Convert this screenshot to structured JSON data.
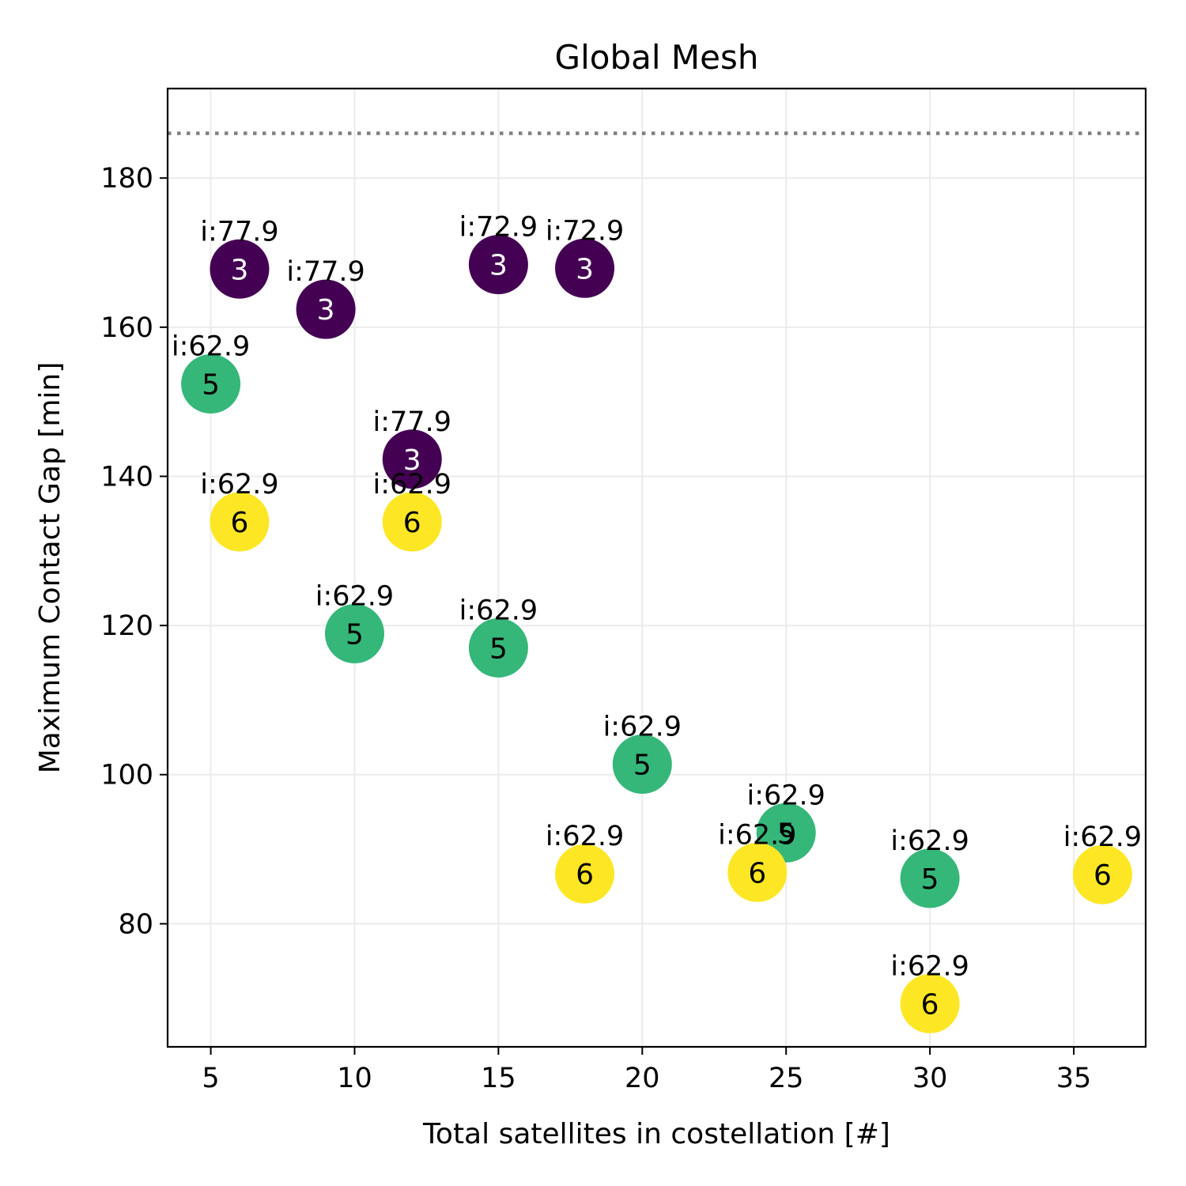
{
  "chart_data": {
    "type": "scatter",
    "title": "Global Mesh",
    "xlabel": "Total satellites in costellation [#]",
    "ylabel": "Maximum Contact Gap [min]",
    "xlim": [
      3.5,
      37.5
    ],
    "ylim": [
      63.5,
      192
    ],
    "xticks": [
      5,
      10,
      15,
      20,
      25,
      30,
      35
    ],
    "yticks": [
      80,
      100,
      120,
      140,
      160,
      180
    ],
    "grid": true,
    "reference_line": {
      "y": 186,
      "style": "dotted",
      "color": "#808080"
    },
    "colors": {
      "3": "#440154",
      "5": "#35b779",
      "6": "#fde725"
    },
    "label_colors": {
      "3": "#ffffff",
      "5": "#000000",
      "6": "#000000"
    },
    "points": [
      {
        "x": 6,
        "y": 167.8,
        "planes": "3",
        "annotation": "i:77.9"
      },
      {
        "x": 9,
        "y": 162.4,
        "planes": "3",
        "annotation": "i:77.9"
      },
      {
        "x": 15,
        "y": 168.4,
        "planes": "3",
        "annotation": "i:72.9"
      },
      {
        "x": 18,
        "y": 167.9,
        "planes": "3",
        "annotation": "i:72.9"
      },
      {
        "x": 12,
        "y": 142.3,
        "planes": "3",
        "annotation": "i:77.9"
      },
      {
        "x": 5,
        "y": 152.4,
        "planes": "5",
        "annotation": "i:62.9"
      },
      {
        "x": 6,
        "y": 133.9,
        "planes": "6",
        "annotation": "i:62.9"
      },
      {
        "x": 12,
        "y": 133.9,
        "planes": "6",
        "annotation": "i:62.9"
      },
      {
        "x": 10,
        "y": 118.9,
        "planes": "5",
        "annotation": "i:62.9"
      },
      {
        "x": 15,
        "y": 117.0,
        "planes": "5",
        "annotation": "i:62.9"
      },
      {
        "x": 20,
        "y": 101.4,
        "planes": "5",
        "annotation": "i:62.9"
      },
      {
        "x": 25,
        "y": 92.2,
        "planes": "5",
        "annotation": "i:62.9"
      },
      {
        "x": 24,
        "y": 86.9,
        "planes": "6",
        "annotation": "i:62.9"
      },
      {
        "x": 18,
        "y": 86.7,
        "planes": "6",
        "annotation": "i:62.9"
      },
      {
        "x": 30,
        "y": 86.1,
        "planes": "5",
        "annotation": "i:62.9"
      },
      {
        "x": 36,
        "y": 86.6,
        "planes": "6",
        "annotation": "i:62.9"
      },
      {
        "x": 30,
        "y": 69.3,
        "planes": "6",
        "annotation": "i:62.9"
      }
    ]
  }
}
